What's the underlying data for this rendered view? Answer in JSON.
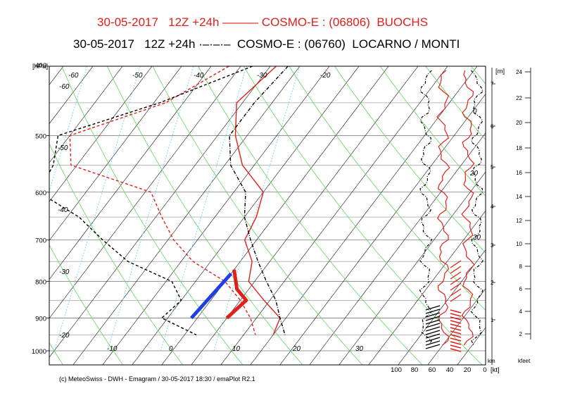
{
  "header": {
    "line1": "30-05-2017   12Z +24h ——— COSMO-E : (06806)  BUOCHS",
    "line2": "30-05-2017   12Z +24h ·–·–·–  COSMO-E : (06760)  LOCARNO / MONTI"
  },
  "footer": {
    "credit": "(c) MeteoSwiss - DWH - Emagram / 30-05-2017  18:30 / emaPlot R2.1"
  },
  "colors": {
    "buochs": "#e0201b",
    "locarno": "#000000",
    "dry_adiabat": "#5ed65e",
    "mixing_ratio": "#7fd0f0",
    "isotherm": "#000000",
    "parcel": "#1f3fe6"
  },
  "chart_data": {
    "type": "line",
    "chart_kind": "emagram (skew-T log-p)",
    "y_axis": {
      "label": "[hPa]",
      "scale": "log",
      "ylim": [
        1000,
        400
      ],
      "ticks": [
        "400",
        "500",
        "600",
        "700",
        "800",
        "900",
        "1000"
      ]
    },
    "temperature_labels": [
      "-60",
      "-60",
      "-50",
      "-50",
      "-40",
      "-40",
      "-30",
      "-30",
      "-20",
      "-20",
      "-10",
      "0",
      "10",
      "20",
      "30",
      "10",
      "30",
      "20",
      "0"
    ],
    "height_axis": {
      "label": "[m]",
      "ticks": [
        "7",
        "6",
        "5",
        "4",
        "3",
        "2",
        "1"
      ],
      "unit": "km"
    },
    "kfeet_axis": {
      "ticks": [
        "24",
        "22",
        "20",
        "18",
        "16",
        "14",
        "12",
        "10",
        "8",
        "6",
        "4",
        "2"
      ],
      "unit": "kfeet"
    },
    "wind_axis": {
      "ticks": [
        "100",
        "80",
        "60",
        "40",
        "20",
        "0"
      ],
      "unit": "[kt]"
    },
    "grid": true,
    "series": [
      {
        "name": "BUOCHS",
        "variable": "temperature",
        "style": "solid",
        "points": [
          [
            400,
            -19
          ],
          [
            450,
            -21
          ],
          [
            500,
            -17
          ],
          [
            550,
            -12
          ],
          [
            600,
            -5
          ],
          [
            650,
            -3
          ],
          [
            700,
            -2
          ],
          [
            750,
            2
          ],
          [
            800,
            4
          ],
          [
            850,
            9
          ],
          [
            900,
            14
          ],
          [
            950,
            15
          ]
        ]
      },
      {
        "name": "BUOCHS",
        "variable": "dewpoint",
        "style": "dashed",
        "points": [
          [
            400,
            -27
          ],
          [
            450,
            -33
          ],
          [
            500,
            -45
          ],
          [
            550,
            -41
          ],
          [
            600,
            -24
          ],
          [
            650,
            -19
          ],
          [
            700,
            -14
          ],
          [
            750,
            -8
          ],
          [
            800,
            0
          ],
          [
            850,
            5
          ],
          [
            900,
            9
          ],
          [
            950,
            12
          ]
        ]
      },
      {
        "name": "LOCARNO / MONTI",
        "variable": "temperature",
        "style": "dashdot",
        "points": [
          [
            400,
            -17
          ],
          [
            450,
            -18
          ],
          [
            500,
            -18
          ],
          [
            550,
            -14
          ],
          [
            600,
            -8
          ],
          [
            650,
            -5
          ],
          [
            700,
            -1
          ],
          [
            750,
            3
          ],
          [
            800,
            7
          ],
          [
            850,
            11
          ],
          [
            900,
            14
          ],
          [
            950,
            17
          ]
        ]
      },
      {
        "name": "LOCARNO / MONTI",
        "variable": "dewpoint",
        "style": "dashed",
        "points": [
          [
            400,
            -23
          ],
          [
            450,
            -34
          ],
          [
            500,
            -47
          ],
          [
            550,
            -44
          ],
          [
            600,
            -43
          ],
          [
            650,
            -33
          ],
          [
            700,
            -26
          ],
          [
            750,
            -19
          ],
          [
            800,
            -9
          ],
          [
            850,
            -5
          ],
          [
            900,
            -6
          ],
          [
            950,
            2
          ]
        ]
      }
    ],
    "parcel_segments": [
      {
        "name": "blue",
        "points": [
          [
            900,
            -1
          ],
          [
            780,
            0
          ]
        ]
      },
      {
        "name": "red",
        "points": [
          [
            770,
            0
          ],
          [
            820,
            3
          ],
          [
            850,
            6
          ],
          [
            900,
            5
          ]
        ]
      }
    ]
  }
}
